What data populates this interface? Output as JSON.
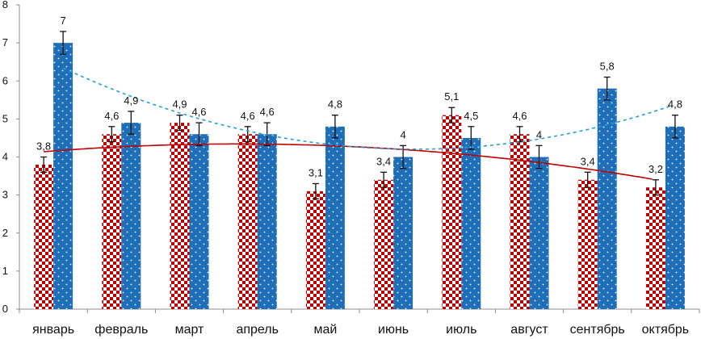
{
  "chart_data": {
    "type": "bar",
    "title": "",
    "xlabel": "",
    "ylabel": "",
    "ylim": [
      0,
      8
    ],
    "yticks": [
      0,
      1,
      2,
      3,
      4,
      5,
      6,
      7,
      8
    ],
    "grid": false,
    "legend": "none",
    "categories": [
      "январь",
      "февраль",
      "март",
      "апрель",
      "май",
      "июнь",
      "июль",
      "август",
      "сентябрь",
      "октябрь"
    ],
    "series": [
      {
        "values": [
          3.8,
          4.6,
          4.9,
          4.6,
          3.1,
          3.4,
          5.1,
          4.6,
          3.4,
          3.2
        ],
        "labels": [
          "3,8",
          "4,6",
          "4,9",
          "4,6",
          "3,1",
          "3,4",
          "5,1",
          "4,6",
          "3,4",
          "3,2"
        ],
        "error": 0.2,
        "color": "#c00000",
        "pattern": "checkerboard",
        "trendline": {
          "type": "polynomial",
          "color": "#c00000",
          "style": "solid"
        }
      },
      {
        "values": [
          7,
          4.9,
          4.6,
          4.6,
          4.8,
          4,
          4.5,
          4,
          5.8,
          4.8
        ],
        "labels": [
          "7",
          "4,9",
          "4,6",
          "4,6",
          "4,8",
          "4",
          "4,5",
          "4",
          "5,8",
          "4,8"
        ],
        "error": 0.3,
        "color": "#1f6fb8",
        "pattern": "dotted",
        "trendline": {
          "type": "polynomial",
          "color": "#22a0d8",
          "style": "dashed"
        }
      }
    ]
  }
}
